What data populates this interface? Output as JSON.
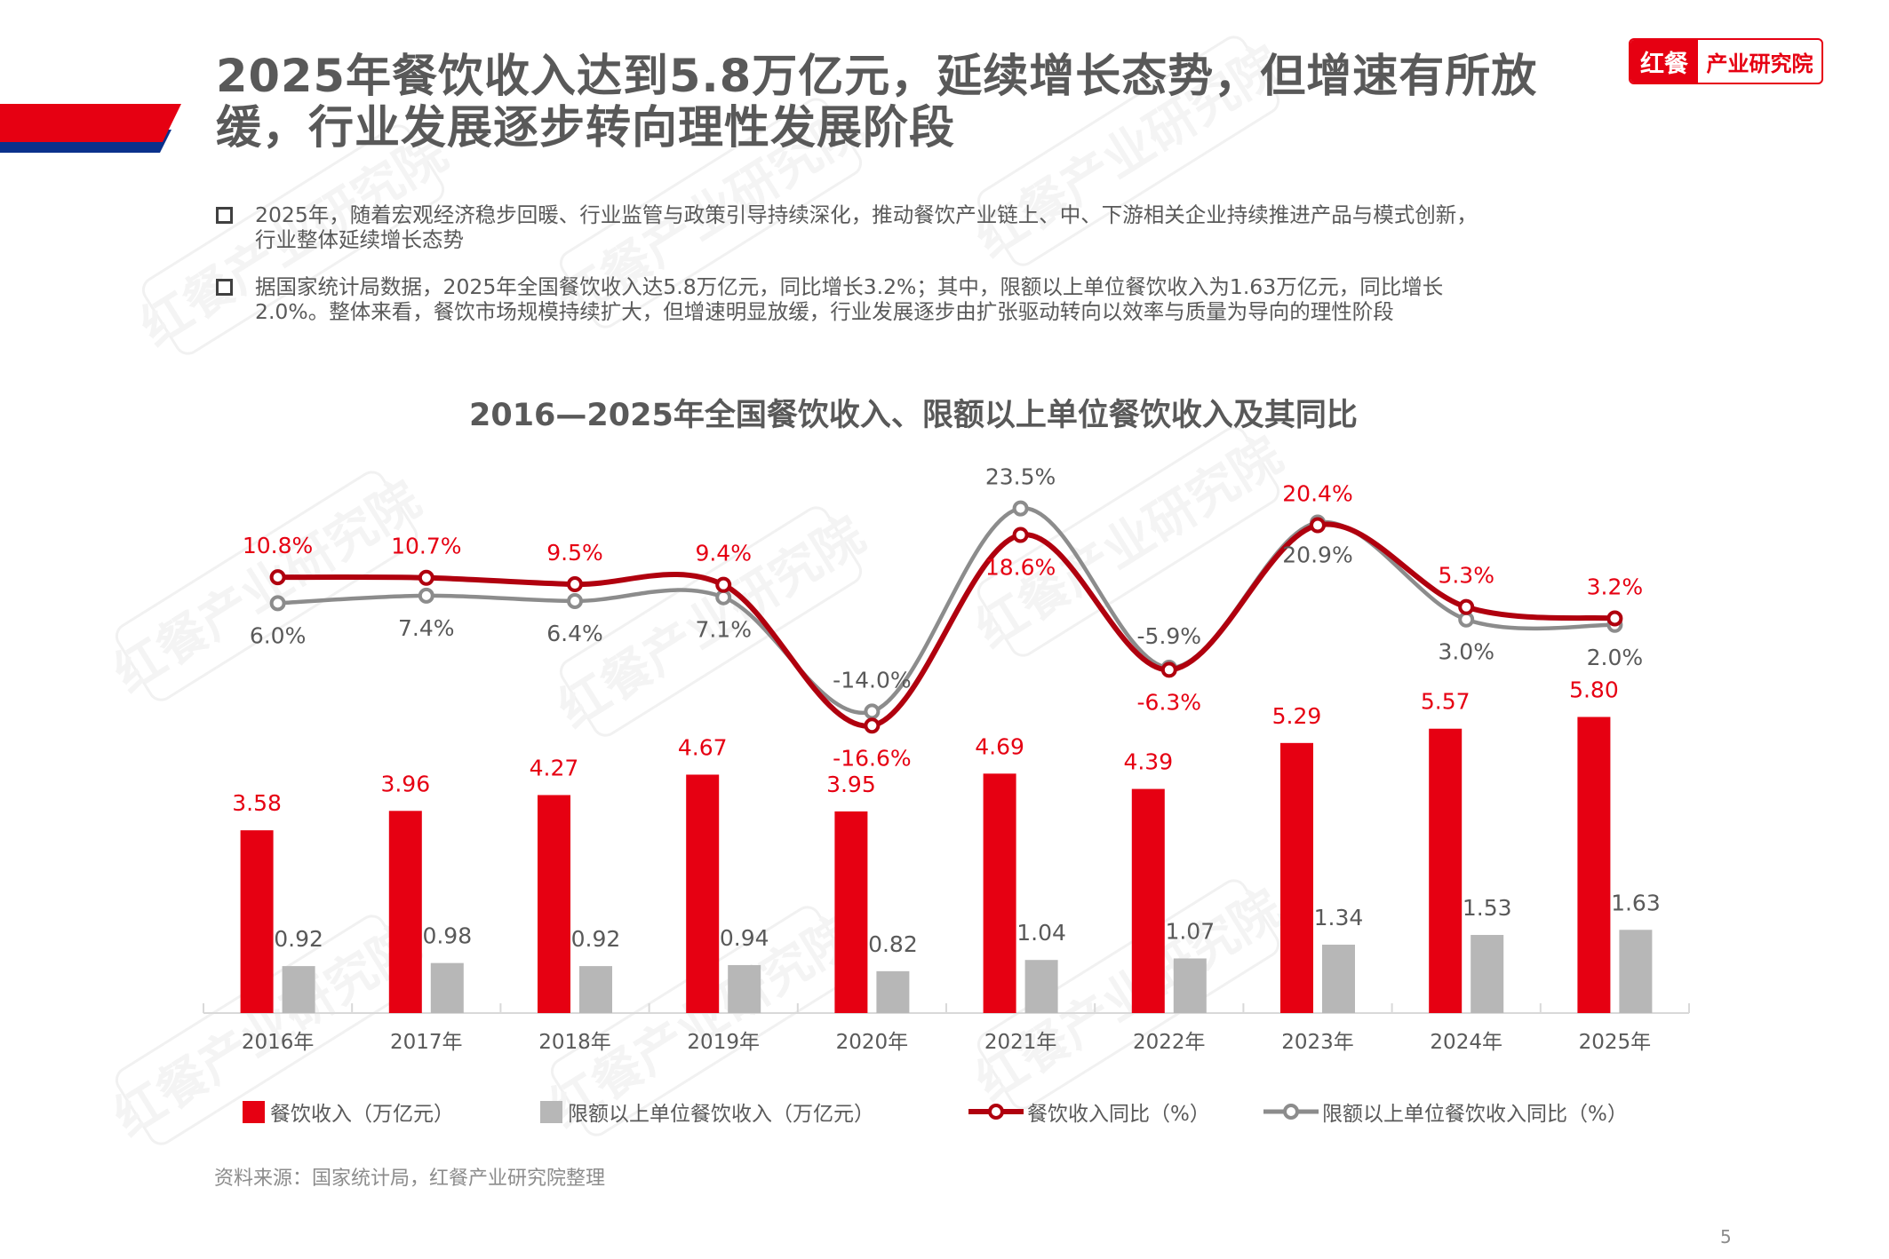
{
  "header": {
    "title_lines": [
      "2025年餐饮收入达到5.8万亿元，延续增长态势，但增速有所放",
      "缓，行业发展逐步转向理性发展阶段"
    ],
    "logo": {
      "left": "红餐",
      "right": "产业研究院"
    }
  },
  "bullets": [
    {
      "lines": [
        "2025年，随着宏观经济稳步回暖、行业监管与政策引导持续深化，推动餐饮产业链上、中、下游相关企业持续推进产品与模式创新，",
        "行业整体延续增长态势"
      ]
    },
    {
      "lines": [
        "据国家统计局数据，2025年全国餐饮收入达5.8万亿元，同比增长3.2%；其中，限额以上单位餐饮收入为1.63万亿元，同比增长",
        "2.0%。整体来看，餐饮市场规模持续扩大，但增速明显放缓，行业发展逐步由扩张驱动转向以效率与质量为导向的理性阶段"
      ]
    }
  ],
  "chart_data": {
    "type": "bar+line",
    "title": "2016—2025年全国餐饮收入、限额以上单位餐饮收入及其同比",
    "categories": [
      "2016年",
      "2017年",
      "2018年",
      "2019年",
      "2020年",
      "2021年",
      "2022年",
      "2023年",
      "2024年",
      "2025年"
    ],
    "bar_series": [
      {
        "name": "餐饮收入（万亿元）",
        "color": "#e60012",
        "label_color": "#e60012",
        "values": [
          3.58,
          3.96,
          4.27,
          4.67,
          3.95,
          4.69,
          4.39,
          5.29,
          5.57,
          5.8
        ]
      },
      {
        "name": "限额以上单位餐饮收入（万亿元）",
        "color": "#b7b7b7",
        "label_color": "#595959",
        "values": [
          0.92,
          0.98,
          0.92,
          0.94,
          0.82,
          1.04,
          1.07,
          1.34,
          1.53,
          1.63
        ]
      }
    ],
    "line_series": [
      {
        "name": "餐饮收入同比（%）",
        "color": "#b0000e",
        "label_color": "#e60012",
        "values": [
          10.8,
          10.7,
          9.5,
          9.4,
          -16.6,
          18.6,
          -6.3,
          20.4,
          5.3,
          3.2
        ],
        "label_placement": [
          "above",
          "above",
          "above",
          "above",
          "below",
          "below",
          "below",
          "above",
          "above",
          "above"
        ]
      },
      {
        "name": "限额以上单位餐饮收入同比（%）",
        "color": "#8c8c8c",
        "label_color": "#595959",
        "values": [
          6.0,
          7.4,
          6.4,
          7.1,
          -14.0,
          23.5,
          -5.9,
          20.9,
          3.0,
          2.0
        ],
        "label_placement": [
          "below",
          "below",
          "below",
          "below",
          "above",
          "above",
          "above",
          "below",
          "below",
          "below"
        ]
      }
    ],
    "bar_axis": {
      "unit": "万亿元",
      "ylim": [
        0,
        6.5
      ],
      "visible": false
    },
    "line_axis": {
      "unit": "%",
      "ylim": [
        -35,
        40
      ],
      "visible": false
    },
    "grid": false,
    "legend_placement": "bottom"
  },
  "source": "资料来源：国家统计局，红餐产业研究院整理",
  "page_number": "5",
  "watermark_text": "红餐产业研究院",
  "colors": {
    "brand_red": "#e60012",
    "brand_blue": "#0a318c",
    "text_gray": "#595959"
  }
}
